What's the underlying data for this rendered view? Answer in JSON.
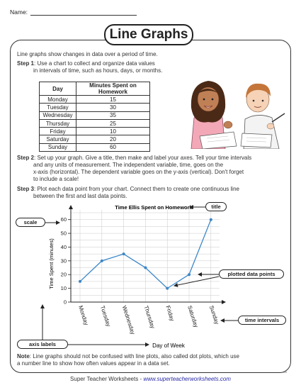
{
  "header": {
    "name_label": "Name:"
  },
  "title": "Line Graphs",
  "intro": "Line graphs show changes in data over a period of time.",
  "step1": {
    "label": "Step 1",
    "line1": ": Use a chart to collect and organize data values",
    "line2": "in intervals of time, such as hours, days, or months."
  },
  "table": {
    "headers": [
      "Day",
      "Minutes Spent on Homework"
    ],
    "rows": [
      [
        "Monday",
        "15"
      ],
      [
        "Tuesday",
        "30"
      ],
      [
        "Wednesday",
        "35"
      ],
      [
        "Thursday",
        "25"
      ],
      [
        "Friday",
        "10"
      ],
      [
        "Saturday",
        "20"
      ],
      [
        "Sunday",
        "60"
      ]
    ]
  },
  "step2": {
    "label": "Step 2",
    "line1": ": Set up your graph. Give a title, then make and label your axes. Tell your time intervals",
    "line2": "and any units of measurement. The independent variable, time, goes on the",
    "line3": "x-axis (horizontal). The dependent variable goes on the y-axis (vertical). Don't forget",
    "line4": "to include a scale!"
  },
  "step3": {
    "label": "Step 3",
    "line1": ": Plot each data point from your chart. Connect them to create one continuous line",
    "line2": "between the first and last data points."
  },
  "chart_data": {
    "type": "line",
    "title": "Time Ellis Spent on Homework",
    "xlabel": "Day of Week",
    "ylabel": "Time Spent (minutes)",
    "categories": [
      "Monday",
      "Tuesday",
      "Wednesday",
      "Thursday",
      "Friday",
      "Saturday",
      "Sunday"
    ],
    "series": [
      {
        "values": [
          15,
          30,
          35,
          25,
          10,
          20,
          60
        ]
      }
    ],
    "ylim": [
      0,
      65
    ],
    "yticks": [
      0,
      10,
      20,
      30,
      40,
      50,
      60
    ],
    "grid": true,
    "line_color": "#3a86c8"
  },
  "callouts": {
    "scale": "scale",
    "title": "title",
    "plotted": "plotted data points",
    "intervals": "time intervals",
    "axis_labels": "axis labels"
  },
  "note": {
    "label": "Note",
    "line1": ": Line graphs should not be confused with line plots, also called dot plots, which use",
    "line2": "a number line to show how often values appear in a data set."
  },
  "footer": {
    "text": "Super Teacher Worksheets - ",
    "url": "www.superteacherworksheets.com"
  },
  "page_code": "S5"
}
